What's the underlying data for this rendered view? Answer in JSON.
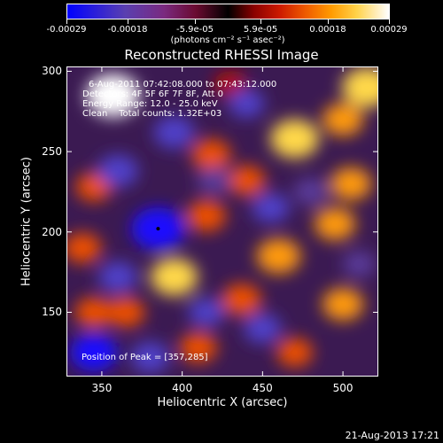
{
  "colorbar": {
    "ticks": [
      "-0.00029",
      "-0.00018",
      "-5.9e-05",
      "5.9e-05",
      "0.00018",
      "0.00029"
    ],
    "tick_values": [
      -0.00029,
      -0.00018,
      -5.9e-05,
      5.9e-05,
      0.00018,
      0.00029
    ],
    "unit": "(photons cm⁻² s⁻¹ asec⁻²)"
  },
  "title": "Reconstructed RHESSI Image",
  "info_lines": [
    "6-Aug-2011 07:42:08.000 to 07:43:12.000",
    "Detectors: 4F 5F 6F 7F 8F, Att 0",
    "Energy Range: 12.0 - 25.0 keV",
    "Clean    Total counts: 1.32E+03"
  ],
  "peak_text": "Position of Peak = [357,285]",
  "timestamp": "21-Aug-2013 17:21",
  "chart_data": {
    "type": "heatmap",
    "title": "Reconstructed RHESSI Image",
    "xlabel": "Heliocentric X (arcsec)",
    "ylabel": "Heliocentric Y (arcsec)",
    "xlim": [
      328,
      522
    ],
    "ylim": [
      110,
      303
    ],
    "x_ticks": [
      350,
      400,
      450,
      500
    ],
    "y_ticks": [
      150,
      200,
      250,
      300
    ],
    "x_tick_labels": [
      "350",
      "400",
      "450",
      "500"
    ],
    "y_tick_labels": [
      "150",
      "200",
      "250",
      "300"
    ],
    "colorscale_range": [
      -0.00029,
      0.00029
    ],
    "peak_position": [
      357,
      285
    ],
    "marker_position": [
      385,
      202
    ],
    "features": [
      {
        "x": 357,
        "y": 285,
        "v": 1.0
      },
      {
        "x": 515,
        "y": 290,
        "v": 0.9
      },
      {
        "x": 500,
        "y": 270,
        "v": 0.6
      },
      {
        "x": 470,
        "y": 258,
        "v": 0.85
      },
      {
        "x": 418,
        "y": 248,
        "v": 0.55
      },
      {
        "x": 440,
        "y": 232,
        "v": 0.5
      },
      {
        "x": 505,
        "y": 230,
        "v": 0.6
      },
      {
        "x": 345,
        "y": 228,
        "v": 0.45
      },
      {
        "x": 415,
        "y": 210,
        "v": 0.55
      },
      {
        "x": 495,
        "y": 205,
        "v": 0.6
      },
      {
        "x": 460,
        "y": 185,
        "v": 0.7
      },
      {
        "x": 395,
        "y": 172,
        "v": 0.8
      },
      {
        "x": 338,
        "y": 190,
        "v": 0.5
      },
      {
        "x": 345,
        "y": 150,
        "v": 0.5
      },
      {
        "x": 437,
        "y": 158,
        "v": 0.55
      },
      {
        "x": 365,
        "y": 150,
        "v": 0.5
      },
      {
        "x": 410,
        "y": 128,
        "v": 0.5
      },
      {
        "x": 470,
        "y": 125,
        "v": 0.45
      },
      {
        "x": 500,
        "y": 155,
        "v": 0.6
      },
      {
        "x": 430,
        "y": 292,
        "v": 0.35
      },
      {
        "x": 385,
        "y": 202,
        "v": -1.0
      },
      {
        "x": 360,
        "y": 238,
        "v": -0.6
      },
      {
        "x": 420,
        "y": 232,
        "v": -0.4
      },
      {
        "x": 455,
        "y": 215,
        "v": -0.5
      },
      {
        "x": 395,
        "y": 262,
        "v": -0.6
      },
      {
        "x": 360,
        "y": 172,
        "v": -0.55
      },
      {
        "x": 345,
        "y": 125,
        "v": -0.8
      },
      {
        "x": 380,
        "y": 122,
        "v": -0.55
      },
      {
        "x": 450,
        "y": 140,
        "v": -0.5
      },
      {
        "x": 415,
        "y": 150,
        "v": -0.45
      },
      {
        "x": 440,
        "y": 280,
        "v": -0.45
      },
      {
        "x": 480,
        "y": 225,
        "v": -0.4
      },
      {
        "x": 510,
        "y": 180,
        "v": -0.35
      }
    ]
  }
}
